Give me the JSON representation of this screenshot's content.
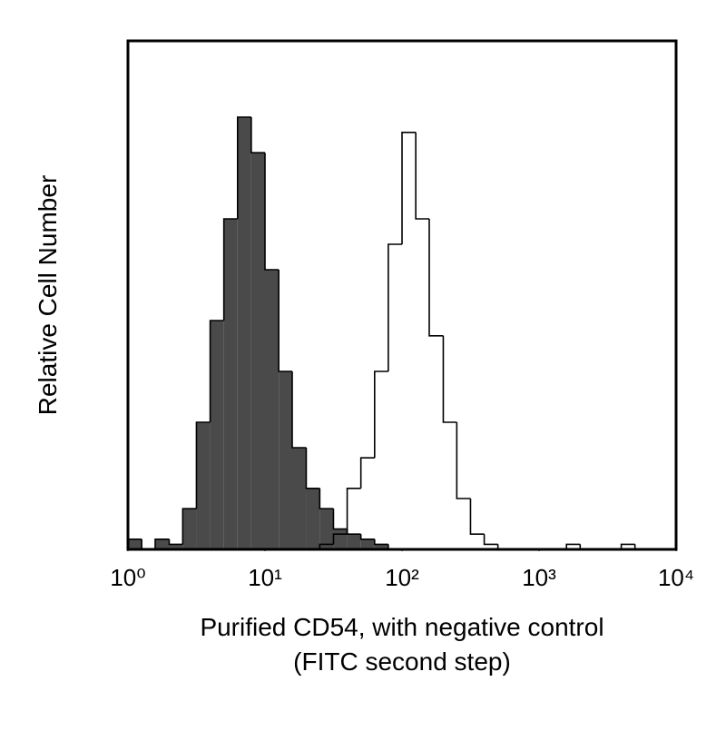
{
  "chart_data": {
    "type": "histogram",
    "x_label": [
      "Purified CD54, with negative control",
      "(FITC second step)"
    ],
    "y_label": "Relative Cell Number",
    "log_x": true,
    "xlim": [
      1,
      10000
    ],
    "ylim": [
      0,
      100
    ],
    "xticks": [
      {
        "value": 1,
        "label": "10⁰"
      },
      {
        "value": 10,
        "label": "10¹"
      },
      {
        "value": 100,
        "label": "10²"
      },
      {
        "value": 1000,
        "label": "10³"
      },
      {
        "value": 10000,
        "label": "10⁴"
      }
    ],
    "bins": [
      1,
      1.26,
      1.58,
      2,
      2.51,
      3.16,
      3.98,
      5.01,
      6.31,
      7.94,
      10,
      12.6,
      15.8,
      20,
      25.1,
      31.6,
      39.8,
      50.1,
      63.1,
      79.4,
      100,
      126,
      158,
      200,
      251,
      316,
      398,
      501,
      631,
      794,
      1000,
      1259,
      1585,
      1995,
      2512,
      3162,
      3981,
      5012,
      6310,
      7943,
      10000
    ],
    "edge_color": "#000000",
    "series": [
      {
        "color": "#4a4a4a",
        "values": [
          2,
          0,
          2,
          1,
          8,
          25,
          45,
          65,
          85,
          78,
          55,
          35,
          20,
          12,
          8,
          4,
          3,
          2,
          1,
          0,
          0,
          0,
          0,
          0,
          0,
          0,
          0,
          0,
          0,
          0,
          0,
          0,
          0,
          0,
          0,
          0,
          0,
          0,
          0,
          0
        ]
      },
      {
        "color": "none",
        "values": [
          0,
          0,
          0,
          0,
          0,
          0,
          0,
          0,
          0,
          0,
          0,
          0,
          0,
          0,
          1,
          3,
          12,
          18,
          35,
          60,
          82,
          65,
          42,
          25,
          10,
          3,
          1,
          0,
          0,
          0,
          0,
          0,
          1,
          0,
          0,
          0,
          1,
          0,
          0,
          0
        ]
      }
    ]
  }
}
